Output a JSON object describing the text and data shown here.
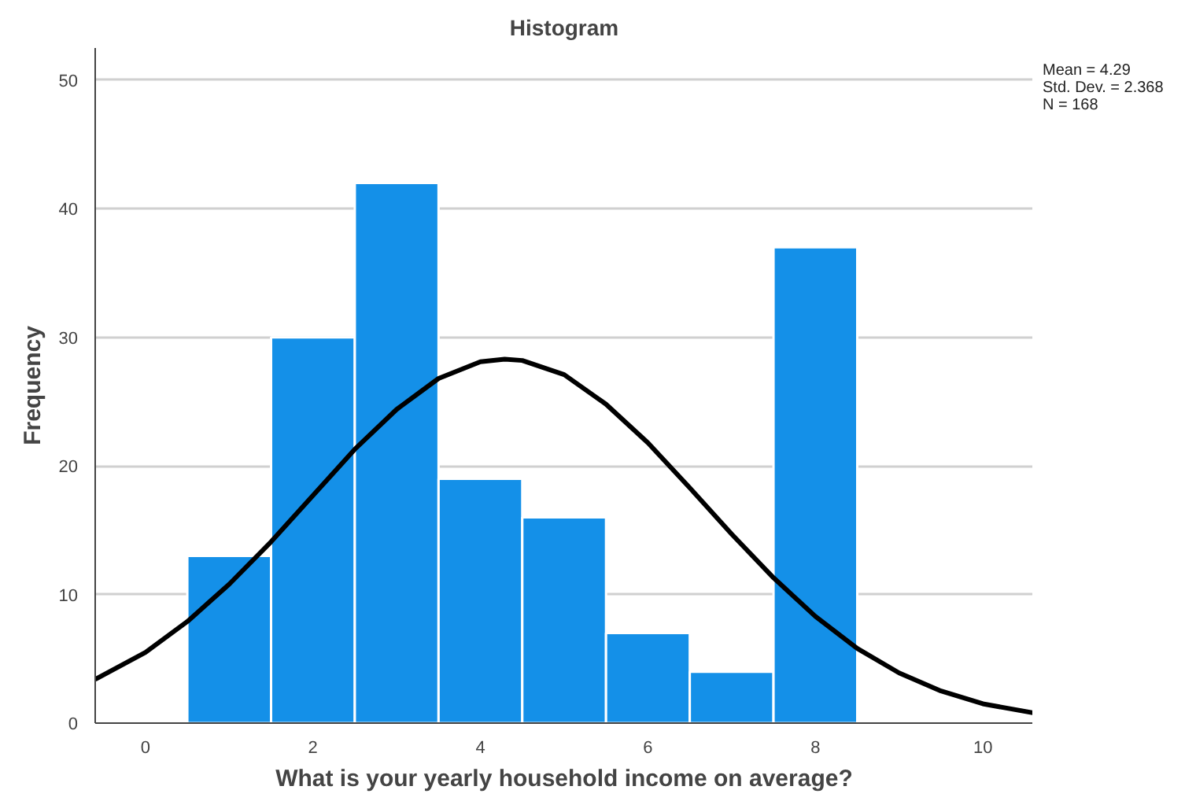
{
  "chart_data": {
    "type": "histogram",
    "title": "Histogram",
    "xlabel": "What is your yearly household income on average?",
    "ylabel": "Frequency",
    "bins": [
      0.5,
      1.5,
      2.5,
      3.5,
      4.5,
      5.5,
      6.5,
      7.5,
      8.5
    ],
    "values": [
      13,
      30,
      42,
      19,
      16,
      7,
      4,
      37
    ],
    "color": "#1490e8",
    "series": [
      {
        "type": "line",
        "color": "#000000",
        "x": [
          -0.6,
          0,
          0.5,
          1,
          1.5,
          2,
          2.5,
          3,
          3.5,
          4,
          4.29,
          4.5,
          5,
          5.5,
          6,
          6.5,
          7,
          7.5,
          8,
          8.5,
          9,
          9.5,
          10,
          10.6
        ],
        "values": [
          3.4,
          5.5,
          7.9,
          10.8,
          14.1,
          17.7,
          21.3,
          24.4,
          26.8,
          28.1,
          28.3,
          28.2,
          27.1,
          24.8,
          21.8,
          18.3,
          14.7,
          11.3,
          8.3,
          5.8,
          3.9,
          2.5,
          1.5,
          0.8
        ]
      }
    ],
    "xlim": [
      -0.6,
      10.6
    ],
    "xticks": [
      0,
      2,
      4,
      6,
      8,
      10
    ],
    "ylim": [
      0,
      52.5
    ],
    "yticks": [
      0,
      10,
      20,
      30,
      40,
      50
    ],
    "grid": "y",
    "annotations": [
      "Mean = 4.29",
      "Std. Dev. = 2.368",
      "N = 168"
    ]
  }
}
